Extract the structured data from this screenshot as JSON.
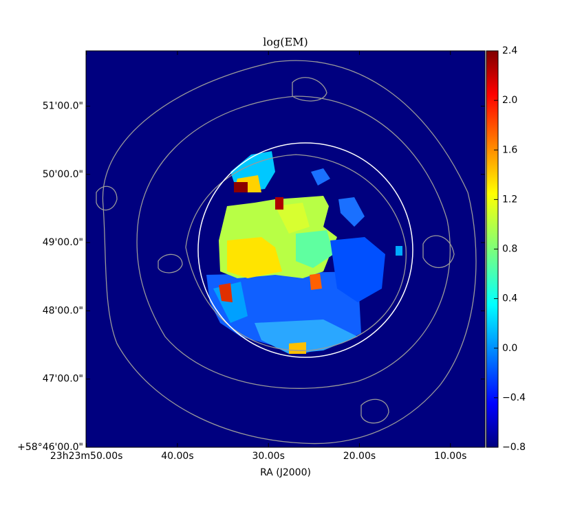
{
  "chart_data": {
    "type": "image",
    "title": "log(EM)",
    "x_label": "RA (J2000)",
    "xlim": [
      50.05,
      6.2
    ],
    "xticks": [
      {
        "value": 50,
        "label": "23h23m50.00s"
      },
      {
        "value": 40,
        "label": "40.00s"
      },
      {
        "value": 30,
        "label": "30.00s"
      },
      {
        "value": 20,
        "label": "20.00s"
      },
      {
        "value": 10,
        "label": "10.00s"
      }
    ],
    "ylim": [
      46,
      51.81
    ],
    "yticks": [
      {
        "value": 46,
        "label": "+58°46'00.0\""
      },
      {
        "value": 47,
        "label": "47'00.0\""
      },
      {
        "value": 48,
        "label": "48'00.0\""
      },
      {
        "value": 49,
        "label": "49'00.0\""
      },
      {
        "value": 50,
        "label": "50'00.0\""
      },
      {
        "value": 51,
        "label": "51'00.0\""
      }
    ],
    "colorbar": {
      "colormap": "jet",
      "lim": [
        -0.8,
        2.4
      ],
      "ticks": [
        {
          "value": -0.8,
          "label": "−0.8"
        },
        {
          "value": -0.4,
          "label": "−0.4"
        },
        {
          "value": 0,
          "label": "0.0"
        },
        0.4,
        0.8,
        1.2,
        1.6,
        {
          "value": 2,
          "label": "2.0"
        },
        2.4
      ]
    }
  }
}
